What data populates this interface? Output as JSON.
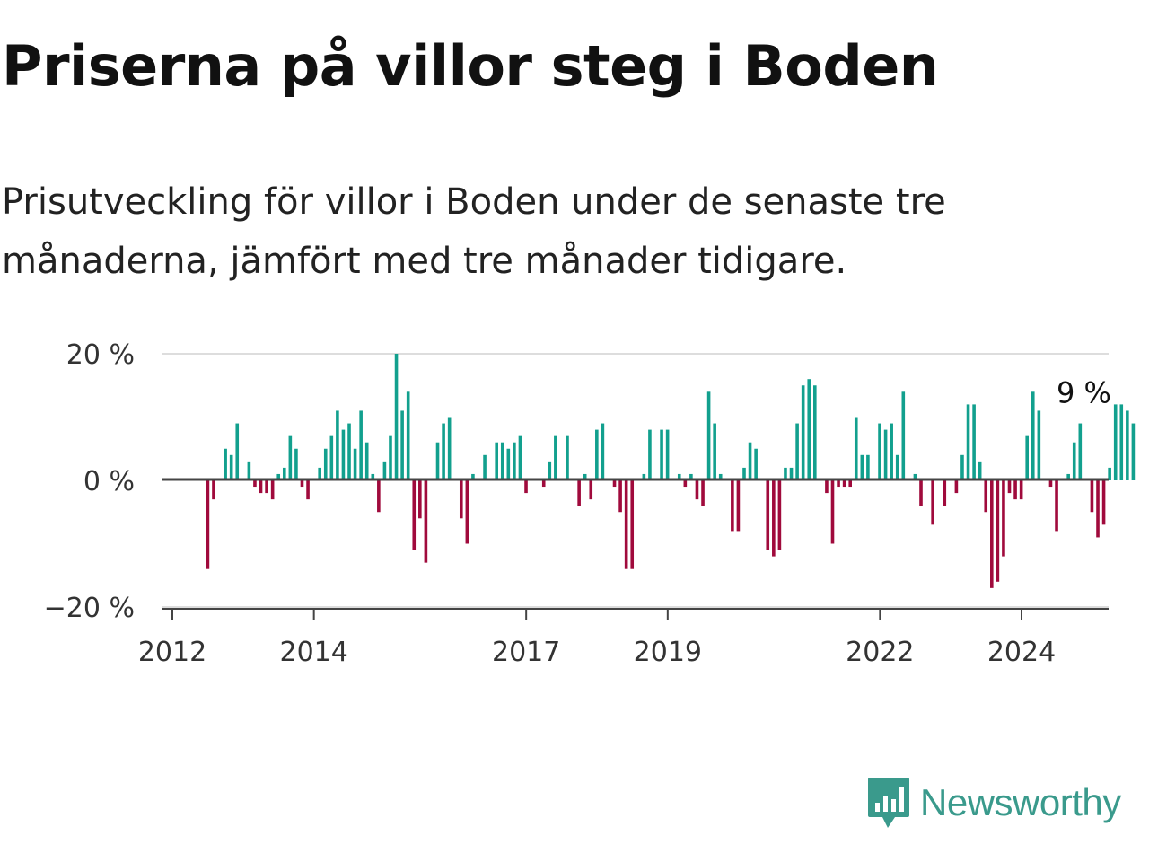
{
  "title": "Priserna på villor steg i Boden",
  "subtitle": "Prisutveckling för villor i Boden under de senaste tre månaderna, jämfört med tre månader tidigare.",
  "brand": {
    "name": "Newsworthy",
    "icon": "newsworthy-logo-icon",
    "color": "#3a9a8c"
  },
  "colors": {
    "positive": "#12a08e",
    "negative": "#a00a3c",
    "grid": "#dddddd",
    "axis": "#444444"
  },
  "chart_data": {
    "type": "bar",
    "ylim": [
      -20,
      20
    ],
    "xlim": [
      2011.9,
      2025.25
    ],
    "yticks": [
      20,
      0,
      -20
    ],
    "ytick_labels": [
      "20 %",
      "0 %",
      "−20 %"
    ],
    "xticks": [
      2012,
      2014,
      2017,
      2019,
      2022,
      2024
    ],
    "xtick_labels": [
      "2012",
      "2014",
      "2017",
      "2019",
      "2022",
      "2024"
    ],
    "grid": true,
    "annotation": {
      "text": "9 %",
      "x": 2024.5,
      "value": 9
    },
    "start": 2012.5,
    "step": 0.0833,
    "values": [
      -14,
      -3,
      0,
      5,
      4,
      9,
      0,
      3,
      -1,
      -2,
      -2,
      -3,
      1,
      2,
      7,
      5,
      -1,
      -3,
      0,
      2,
      5,
      7,
      11,
      8,
      9,
      5,
      11,
      6,
      1,
      -5,
      3,
      7,
      20,
      11,
      14,
      -11,
      -6,
      -13,
      0,
      6,
      9,
      10,
      0,
      -6,
      -10,
      1,
      0,
      4,
      0,
      6,
      6,
      5,
      6,
      7,
      -2,
      0,
      0,
      -1,
      3,
      7,
      0,
      7,
      0,
      -4,
      1,
      -3,
      8,
      9,
      0,
      -1,
      -5,
      -14,
      -14,
      0,
      1,
      8,
      0,
      8,
      8,
      0,
      1,
      -1,
      1,
      -3,
      -4,
      14,
      9,
      1,
      0,
      -8,
      -8,
      2,
      6,
      5,
      0,
      -11,
      -12,
      -11,
      2,
      2,
      9,
      15,
      16,
      15,
      0,
      -2,
      -10,
      -1,
      -1,
      -1,
      10,
      4,
      4,
      0,
      9,
      8,
      9,
      4,
      14,
      0,
      1,
      -4,
      0,
      -7,
      0,
      -4,
      0,
      -2,
      4,
      12,
      12,
      3,
      -5,
      -17,
      -16,
      -12,
      -2,
      -3,
      -3,
      7,
      14,
      11,
      0,
      -1,
      -8,
      0,
      1,
      6,
      9,
      0,
      -5,
      -9,
      -7,
      2,
      12,
      12,
      11,
      9
    ]
  }
}
